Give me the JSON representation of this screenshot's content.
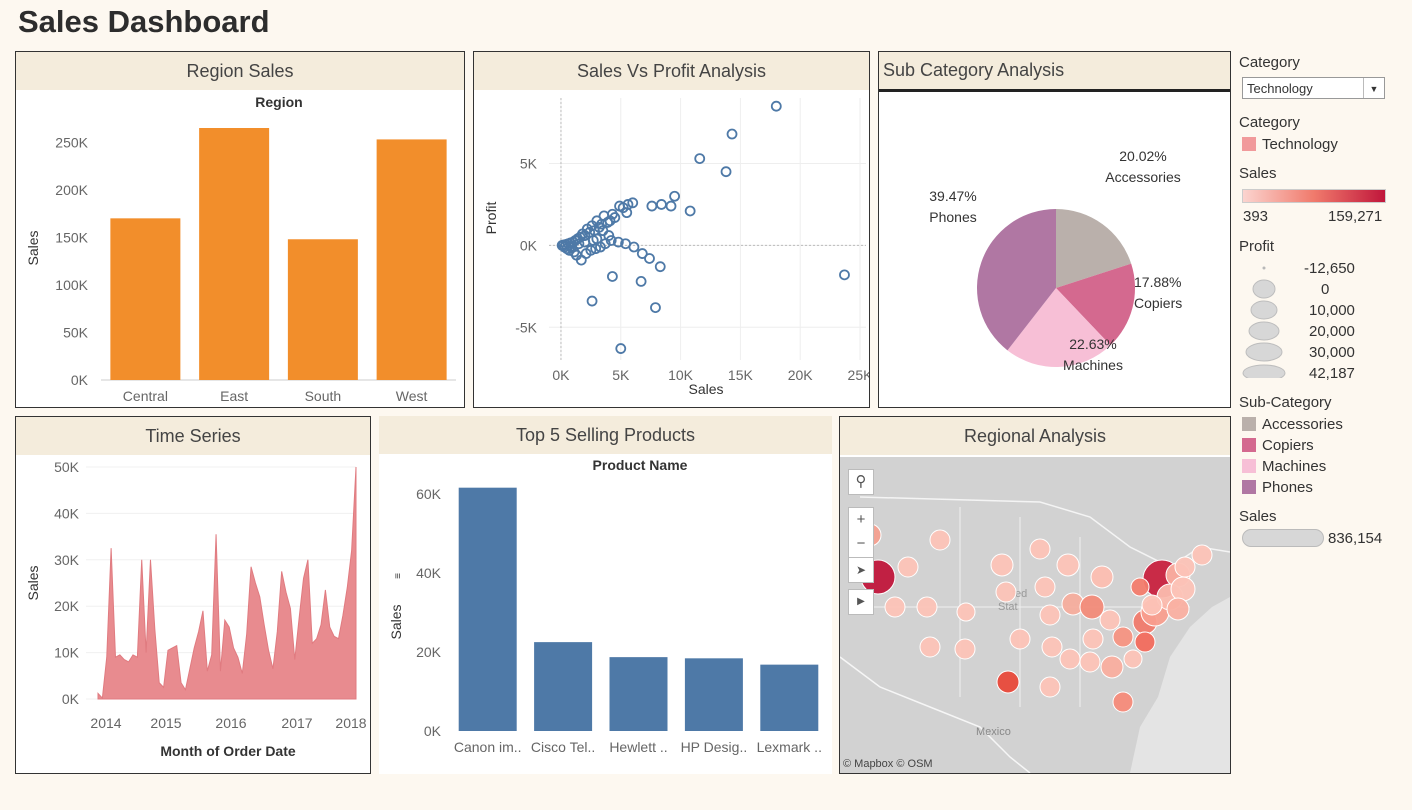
{
  "dashboard_title": "Sales Dashboard",
  "panels": {
    "region_sales": "Region Sales",
    "sales_vs_profit": "Sales Vs Profit Analysis",
    "sub_category": "Sub Category Analysis",
    "time_series": "Time Series",
    "top5": "Top 5 Selling Products",
    "regional": "Regional Analysis"
  },
  "filters": {
    "category_label": "Category",
    "category_value": "Technology"
  },
  "legends": {
    "category": {
      "label": "Category",
      "item": "Technology",
      "color": "#f19a9b"
    },
    "sales": {
      "label": "Sales",
      "min": "393",
      "max": "159,271",
      "from": "#fbd4cf",
      "to": "#c0163b"
    },
    "profit": {
      "label": "Profit",
      "items": [
        "-12,650",
        "0",
        "10,000",
        "20,000",
        "30,000",
        "42,187"
      ]
    },
    "sub_category": {
      "label": "Sub-Category",
      "items": [
        {
          "name": "Accessories",
          "color": "#bab0ab"
        },
        {
          "name": "Copiers",
          "color": "#d4698f"
        },
        {
          "name": "Machines",
          "color": "#f7bfd6"
        },
        {
          "name": "Phones",
          "color": "#b077a3"
        }
      ]
    },
    "sales_size": {
      "label": "Sales",
      "value": "836,154"
    }
  },
  "map": {
    "attribution": "© Mapbox © OSM",
    "labels": [
      "ted",
      "Stat",
      "Mexico"
    ]
  },
  "chart_data": [
    {
      "type": "bar",
      "title": "Region",
      "xlabel": "",
      "ylabel": "Sales",
      "categories": [
        "Central",
        "East",
        "South",
        "West"
      ],
      "values": [
        170000,
        265000,
        148000,
        253000
      ],
      "ylim": [
        0,
        265000
      ],
      "yticks": [
        "0K",
        "50K",
        "100K",
        "150K",
        "200K",
        "250K"
      ],
      "color": "#f28e2b"
    },
    {
      "type": "scatter",
      "title": "",
      "xlabel": "Sales",
      "ylabel": "Profit",
      "xticks": [
        "0K",
        "5K",
        "10K",
        "15K",
        "20K",
        "25K"
      ],
      "yticks": [
        "-5K",
        "0K",
        "5K"
      ],
      "xlim": [
        -1000,
        25500
      ],
      "ylim": [
        -7000,
        9000
      ],
      "color": "#4e79a7",
      "points": [
        [
          18000,
          8500
        ],
        [
          14300,
          6800
        ],
        [
          11600,
          5300
        ],
        [
          13800,
          4500
        ],
        [
          10800,
          2100
        ],
        [
          9500,
          3000
        ],
        [
          9200,
          2400
        ],
        [
          8400,
          2500
        ],
        [
          7600,
          2400
        ],
        [
          6000,
          2600
        ],
        [
          5600,
          2500
        ],
        [
          5200,
          2300
        ],
        [
          5500,
          2000
        ],
        [
          4900,
          2400
        ],
        [
          4500,
          1700
        ],
        [
          4300,
          1900
        ],
        [
          4100,
          1500
        ],
        [
          3900,
          1400
        ],
        [
          3600,
          1800
        ],
        [
          3400,
          1300
        ],
        [
          3200,
          1100
        ],
        [
          3000,
          1500
        ],
        [
          2800,
          900
        ],
        [
          2600,
          1200
        ],
        [
          2400,
          800
        ],
        [
          2200,
          1000
        ],
        [
          2000,
          600
        ],
        [
          1800,
          700
        ],
        [
          1600,
          500
        ],
        [
          1400,
          400
        ],
        [
          1200,
          300
        ],
        [
          1000,
          200
        ],
        [
          800,
          150
        ],
        [
          600,
          100
        ],
        [
          400,
          50
        ],
        [
          200,
          20
        ],
        [
          100,
          0
        ],
        [
          300,
          -100
        ],
        [
          500,
          -200
        ],
        [
          700,
          -300
        ],
        [
          900,
          -150
        ],
        [
          1100,
          -400
        ],
        [
          1300,
          -600
        ],
        [
          1700,
          -900
        ],
        [
          2100,
          -500
        ],
        [
          2500,
          -300
        ],
        [
          2900,
          -200
        ],
        [
          3300,
          -100
        ],
        [
          3700,
          100
        ],
        [
          4200,
          300
        ],
        [
          4800,
          200
        ],
        [
          5400,
          100
        ],
        [
          6100,
          -100
        ],
        [
          6800,
          -500
        ],
        [
          7400,
          -800
        ],
        [
          8300,
          -1300
        ],
        [
          6700,
          -2200
        ],
        [
          4300,
          -1900
        ],
        [
          7900,
          -3800
        ],
        [
          2600,
          -3400
        ],
        [
          5000,
          -6300
        ],
        [
          23700,
          -1800
        ],
        [
          3000,
          400
        ],
        [
          4000,
          600
        ],
        [
          3500,
          900
        ],
        [
          2700,
          300
        ],
        [
          1500,
          100
        ],
        [
          900,
          -50
        ],
        [
          2000,
          200
        ]
      ]
    },
    {
      "type": "pie",
      "title": "",
      "slices": [
        {
          "name": "Accessories",
          "value": 20.02,
          "label": "20.02%",
          "color": "#bab0ab"
        },
        {
          "name": "Copiers",
          "value": 17.88,
          "label": "17.88%",
          "color": "#d4698f"
        },
        {
          "name": "Machines",
          "value": 22.63,
          "label": "22.63%",
          "color": "#f7bfd6"
        },
        {
          "name": "Phones",
          "value": 39.47,
          "label": "39.47%",
          "color": "#b077a3"
        }
      ]
    },
    {
      "type": "area",
      "title": "",
      "xlabel": "Month of Order Date",
      "ylabel": "Sales",
      "xticks": [
        "2014",
        "2015",
        "2016",
        "2017",
        "2018"
      ],
      "yticks": [
        "0K",
        "10K",
        "20K",
        "30K",
        "40K",
        "50K"
      ],
      "ylim": [
        0,
        50000
      ],
      "color": "#e88b8f",
      "values": [
        1200,
        200,
        9000,
        32500,
        9000,
        9500,
        8500,
        8000,
        9500,
        9000,
        30000,
        10000,
        30000,
        15000,
        3500,
        2500,
        10500,
        11000,
        11500,
        3500,
        2000,
        6500,
        11000,
        14500,
        19000,
        6000,
        9500,
        35500,
        6000,
        17000,
        15500,
        11000,
        9000,
        5500,
        14000,
        28500,
        25000,
        22000,
        16000,
        10500,
        6500,
        14500,
        27500,
        23000,
        19500,
        8500,
        17500,
        26000,
        30000,
        12000,
        13000,
        16000,
        23500,
        15500,
        13500,
        13000,
        18000,
        24000,
        32000,
        50000
      ]
    },
    {
      "type": "bar",
      "title": "Product Name",
      "xlabel": "",
      "ylabel": "Sales",
      "categories": [
        "Canon im..",
        "Cisco Tel..",
        "Hewlett ..",
        "HP Desig..",
        "Lexmark .."
      ],
      "values": [
        61600,
        22500,
        18700,
        18400,
        16800
      ],
      "ylim": [
        0,
        60000
      ],
      "yticks": [
        "0K",
        "20K",
        "40K",
        "60K"
      ],
      "color": "#4e79a7"
    }
  ]
}
